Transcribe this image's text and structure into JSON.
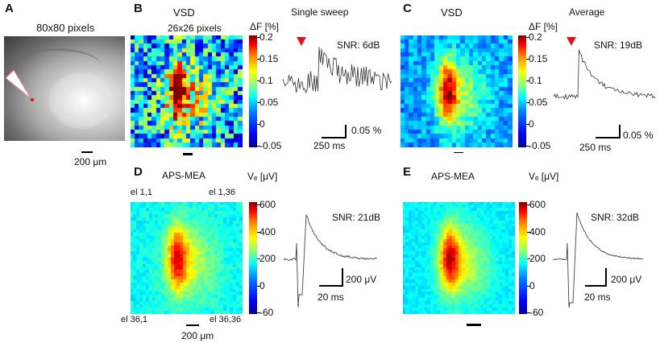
{
  "panels": {
    "A": {
      "label": "A",
      "title": "80x80 pixels",
      "scale": "200 μm"
    },
    "B": {
      "label": "B",
      "modality": "VSD",
      "map_title": "26x26 pixels",
      "cbar_unit": "ΔF [%]",
      "cbar_ticks": [
        "0.2",
        "0.15",
        "0.1",
        "0.05",
        "0",
        "-0.05"
      ],
      "trace_title": "Single sweep",
      "snr": "SNR: 6dB",
      "scale_y": "0.05 %",
      "scale_x": "250 ms"
    },
    "C": {
      "label": "C",
      "modality": "VSD",
      "cbar_unit": "ΔF [%]",
      "cbar_ticks": [
        "0.2",
        "0.15",
        "0.1",
        "0.05",
        "0",
        "-0.05"
      ],
      "trace_title": "Average",
      "snr": "SNR: 19dB",
      "scale_y": "0.05 %",
      "scale_x": "250 ms"
    },
    "D": {
      "label": "D",
      "modality": "APS-MEA",
      "cbar_unit": "Vₑ [μV]",
      "cbar_ticks": [
        "600",
        "400",
        "200",
        "0",
        "-60"
      ],
      "corners": [
        "el 1,1",
        "el 1,36",
        "el 36,1",
        "el 36,36"
      ],
      "snr": "SNR: 21dB",
      "scale_y": "200 μV",
      "scale_x": "20 ms",
      "scale_map": "200 μm"
    },
    "E": {
      "label": "E",
      "modality": "APS-MEA",
      "cbar_unit": "Vₑ [μV]",
      "cbar_ticks": [
        "600",
        "400",
        "200",
        "0",
        "-60"
      ],
      "snr": "SNR: 32dB",
      "scale_y": "200 μV",
      "scale_x": "20 ms"
    }
  },
  "colors": {
    "arrow": "#d9161c",
    "trace": "#333333"
  }
}
